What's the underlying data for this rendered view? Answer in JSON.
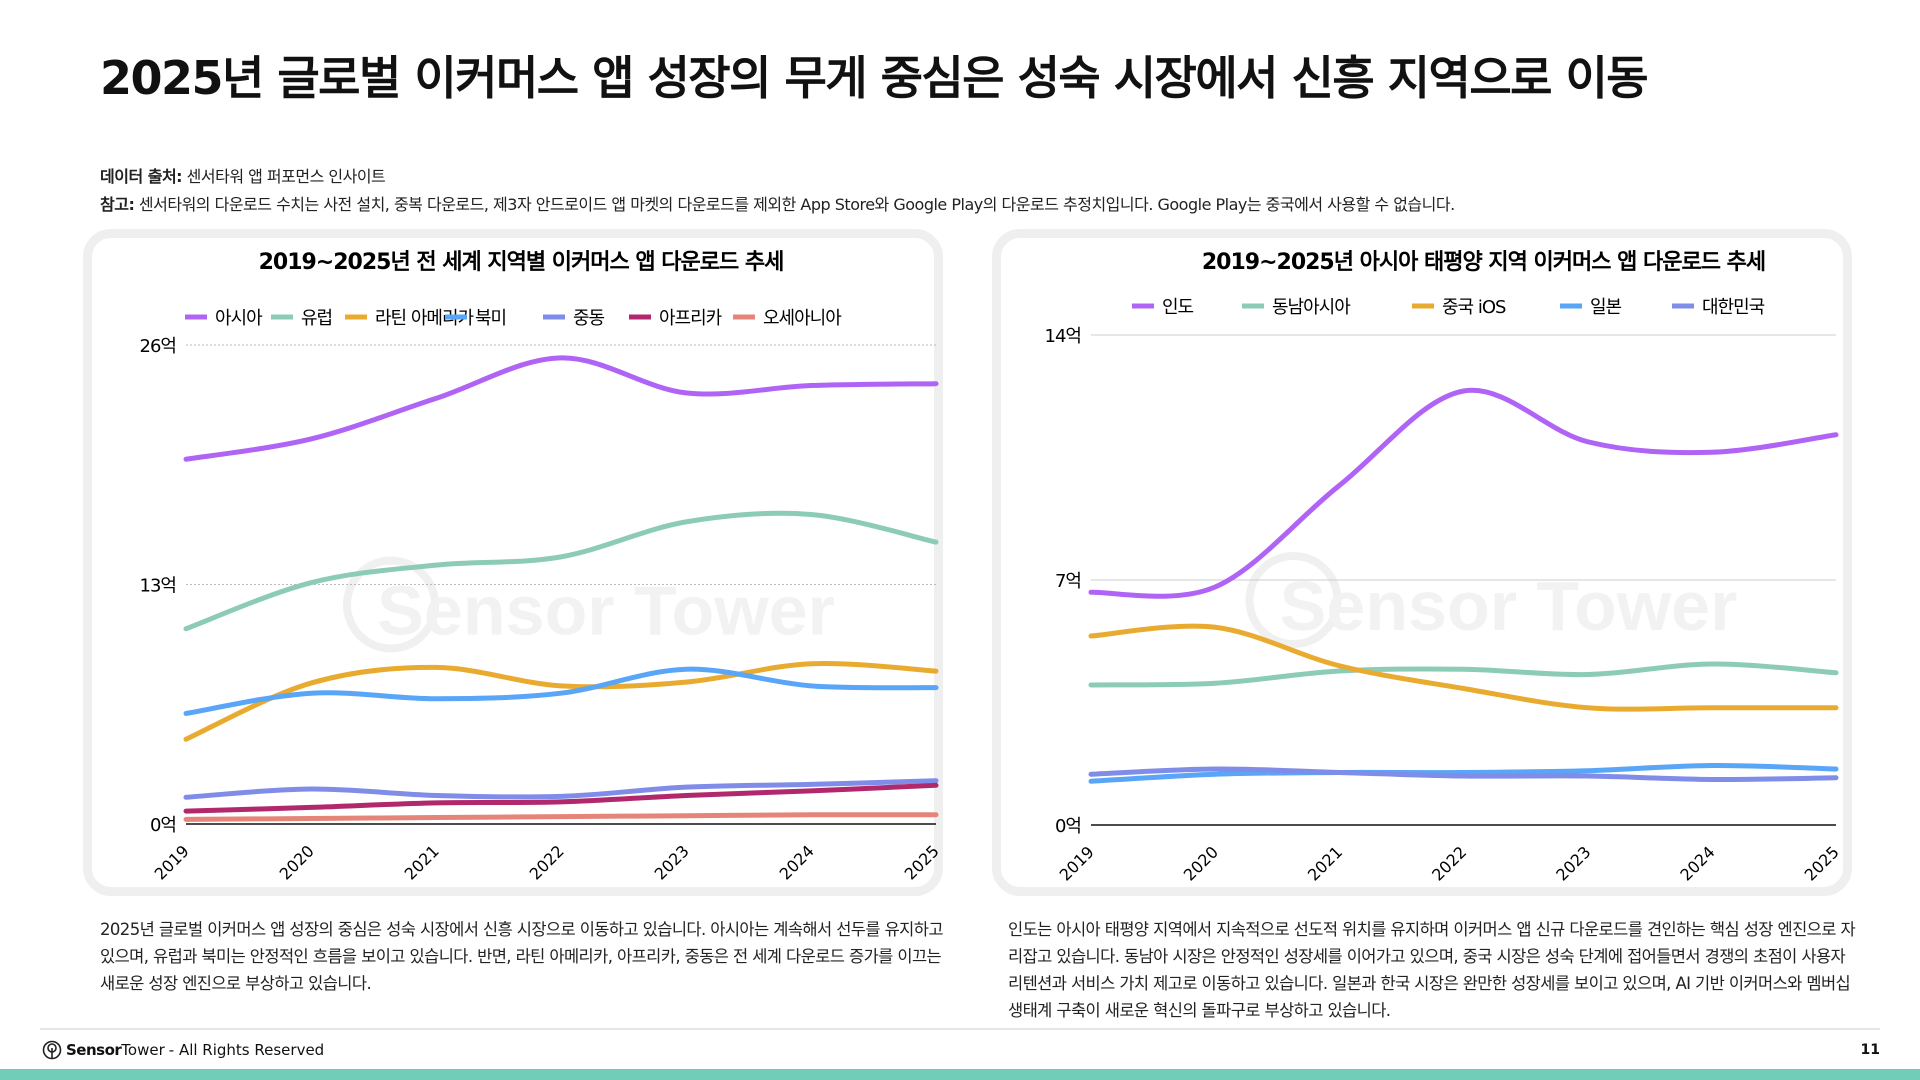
{
  "title": "2025년 글로벌 이커머스 앱 성장의 무게 중심은 성숙 시장에서 신흥 지역으로 이동",
  "source": {
    "label": "데이터 출처:",
    "text": " 센서타워 앱 퍼포먼스 인사이트"
  },
  "note": {
    "label": "참고:",
    "text": " 센서타워의 다운로드 수치는 사전 설치, 중복 다운로드, 제3자 안드로이드 앱 마켓의 다운로드를 제외한 App Store와 Google Play의 다운로드 추정치입니다. Google Play는 중국에서 사용할 수 없습니다."
  },
  "watermark": "Sensor Tower",
  "chart_data": [
    {
      "type": "line",
      "title": "2019~2025년 전 세계 지역별 이커머스 앱 다운로드 추세",
      "categories": [
        "2019",
        "2020",
        "2021",
        "2022",
        "2023",
        "2024",
        "2025"
      ],
      "ylim": [
        0,
        26
      ],
      "yticks": [
        0,
        13,
        26
      ],
      "ytick_labels": [
        "0억",
        "13억",
        "26억"
      ],
      "grid": true,
      "legend": "top",
      "series": [
        {
          "name": "아시아",
          "color": "#b064f5",
          "values": [
            19.8,
            20.9,
            23.1,
            25.3,
            23.4,
            23.8,
            23.9
          ]
        },
        {
          "name": "유럽",
          "color": "#8ccbb8",
          "values": [
            10.6,
            13.1,
            14.05,
            14.5,
            16.4,
            16.8,
            15.3
          ]
        },
        {
          "name": "라틴 아메리카",
          "color": "#e9ab2f",
          "values": [
            4.6,
            7.65,
            8.5,
            7.5,
            7.7,
            8.7,
            8.3
          ]
        },
        {
          "name": "북미",
          "color": "#59a5f7",
          "values": [
            6.0,
            7.1,
            6.8,
            7.1,
            8.4,
            7.5,
            7.4
          ]
        },
        {
          "name": "중동",
          "color": "#7f8de8",
          "values": [
            1.45,
            1.9,
            1.55,
            1.5,
            2.0,
            2.15,
            2.35
          ]
        },
        {
          "name": "아프리카",
          "color": "#b1296c",
          "values": [
            0.7,
            0.9,
            1.15,
            1.2,
            1.55,
            1.8,
            2.1
          ]
        },
        {
          "name": "오세아니아",
          "color": "#e5857a",
          "values": [
            0.25,
            0.3,
            0.35,
            0.4,
            0.45,
            0.5,
            0.5
          ]
        }
      ]
    },
    {
      "type": "line",
      "title": "2019~2025년 아시아 태평양 지역 이커머스 앱 다운로드 추세",
      "categories": [
        "2019",
        "2020",
        "2021",
        "2022",
        "2023",
        "2024",
        "2025"
      ],
      "ylim": [
        0,
        14
      ],
      "yticks": [
        0,
        7,
        14
      ],
      "ytick_labels": [
        "0억",
        "7억",
        "14억"
      ],
      "grid": true,
      "legend": "top",
      "series": [
        {
          "name": "인도",
          "color": "#b064f5",
          "values": [
            6.65,
            6.8,
            9.7,
            12.4,
            10.95,
            10.65,
            11.15
          ]
        },
        {
          "name": "동남아시아",
          "color": "#8ccbb8",
          "values": [
            4.0,
            4.05,
            4.4,
            4.45,
            4.3,
            4.6,
            4.35
          ]
        },
        {
          "name": "중국 iOS",
          "color": "#e9ab2f",
          "values": [
            5.4,
            5.65,
            4.55,
            3.9,
            3.35,
            3.35,
            3.35
          ]
        },
        {
          "name": "일본",
          "color": "#59a5f7",
          "values": [
            1.25,
            1.45,
            1.5,
            1.5,
            1.55,
            1.7,
            1.6
          ]
        },
        {
          "name": "대한민국",
          "color": "#7f8de8",
          "values": [
            1.45,
            1.6,
            1.5,
            1.4,
            1.4,
            1.3,
            1.35
          ]
        }
      ]
    }
  ],
  "left_text": "2025년 글로벌 이커머스 앱 성장의 중심은 성숙 시장에서 신흥 시장으로 이동하고 있습니다. 아시아는 계속해서 선두를 유지하고 있으며, 유럽과 북미는 안정적인 흐름을 보이고 있습니다. 반면, 라틴 아메리카, 아프리카, 중동은 전 세계 다운로드 증가를 이끄는 새로운 성장 엔진으로 부상하고 있습니다.",
  "right_text": "인도는 아시아 태평양 지역에서 지속적으로 선도적 위치를 유지하며 이커머스 앱 신규 다운로드를 견인하는 핵심 성장 엔진으로 자리잡고 있습니다. 동남아 시장은 안정적인 성장세를 이어가고 있으며, 중국 시장은 성숙 단계에 접어들면서 경쟁의 초점이 사용자 리텐션과 서비스 가치 제고로 이동하고 있습니다. 일본과 한국 시장은 완만한 성장세를 보이고 있으며, AI 기반 이커머스와 멤버십 생태계 구축이 새로운 혁신의 돌파구로 부상하고 있습니다.",
  "footer": {
    "brand_bold": "Sensor",
    "brand_light": "Tower",
    "rights": " - All Rights Reserved",
    "page": "11"
  },
  "colors": {
    "accent_bar": "#72cdb8"
  }
}
